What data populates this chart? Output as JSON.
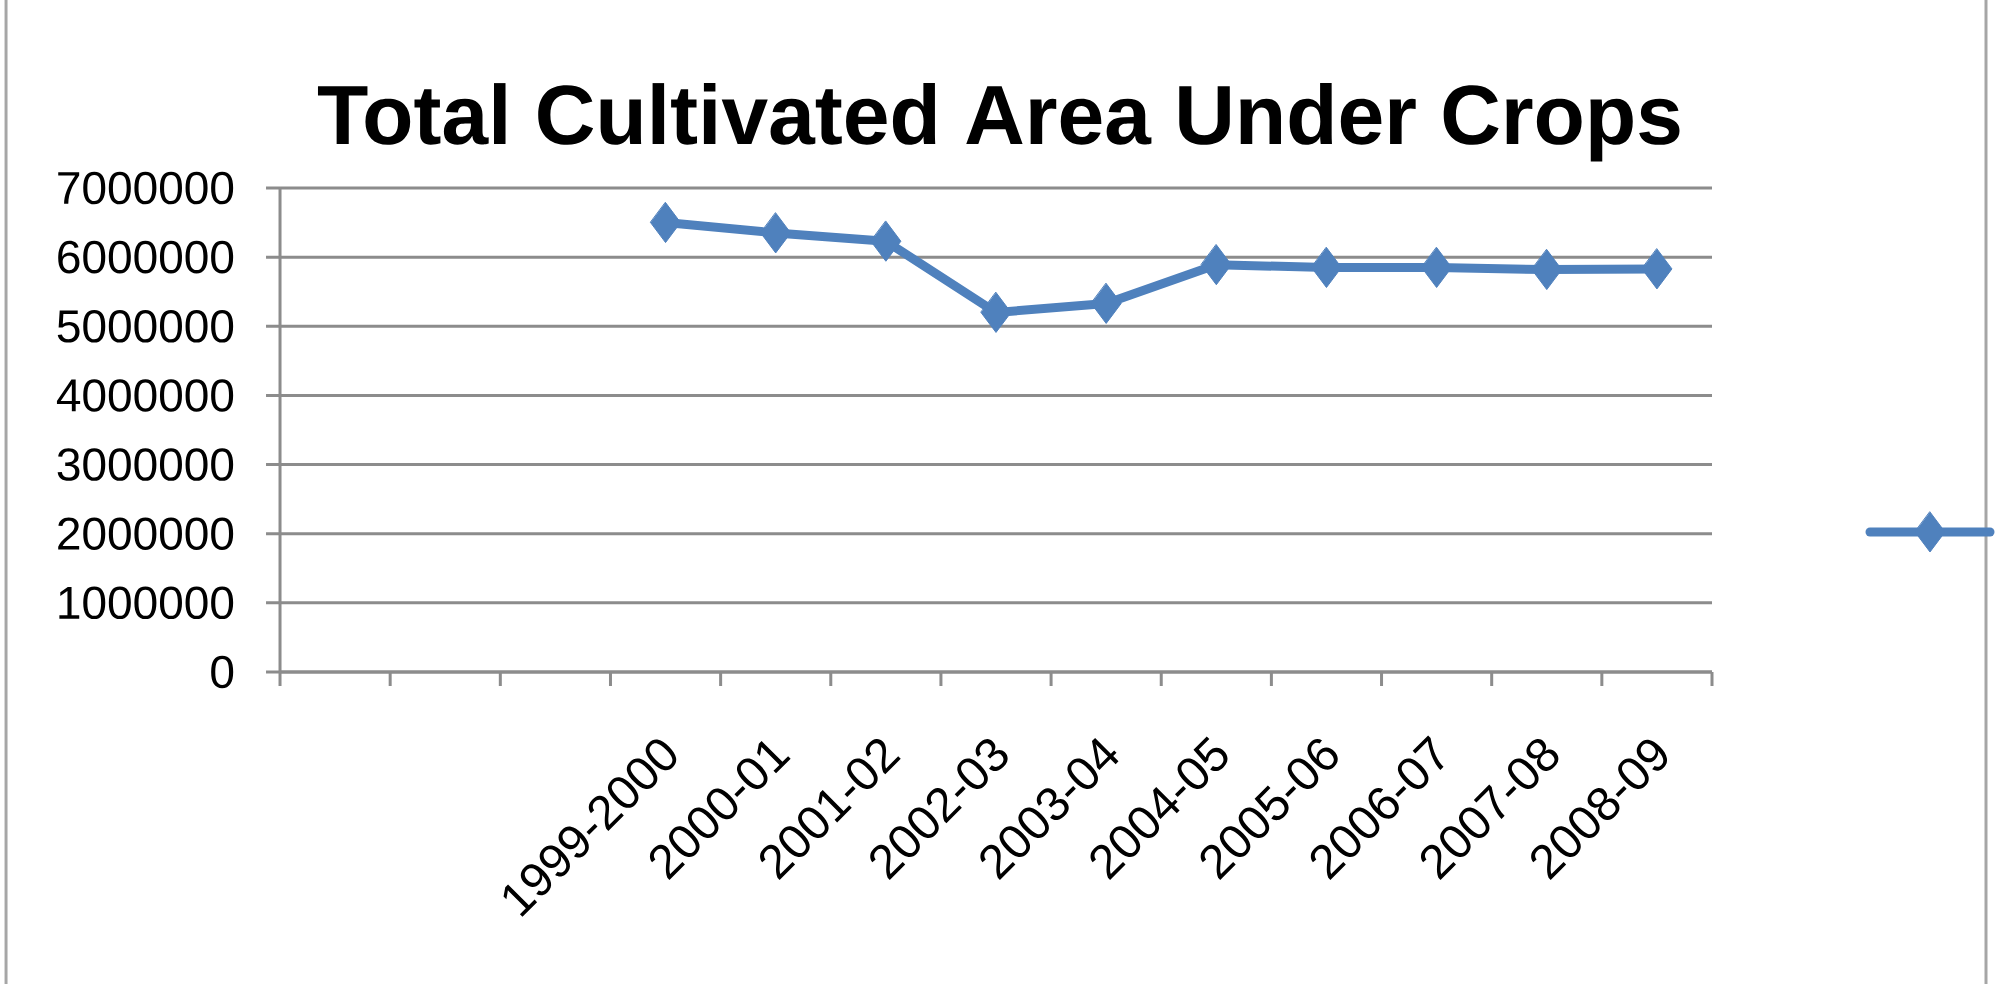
{
  "chart_data": {
    "type": "line",
    "title": "Total Cultivated Area Under Crops",
    "categories": [
      null,
      null,
      null,
      "1999-2000",
      "2000-01",
      "2001-02",
      "2002-03",
      "2003-04",
      "2004-05",
      "2005-06",
      "2006-07",
      "2007-08",
      "2008-09"
    ],
    "values": [
      null,
      null,
      null,
      6500000,
      6350000,
      6230000,
      5200000,
      5330000,
      5890000,
      5850000,
      5850000,
      5820000,
      5830000
    ],
    "color": "#4f81bd",
    "marker": "diamond",
    "ylim": [
      0,
      7000000
    ],
    "yticks": [
      0,
      1000000,
      2000000,
      3000000,
      4000000,
      5000000,
      6000000,
      7000000
    ],
    "grid": "y"
  }
}
